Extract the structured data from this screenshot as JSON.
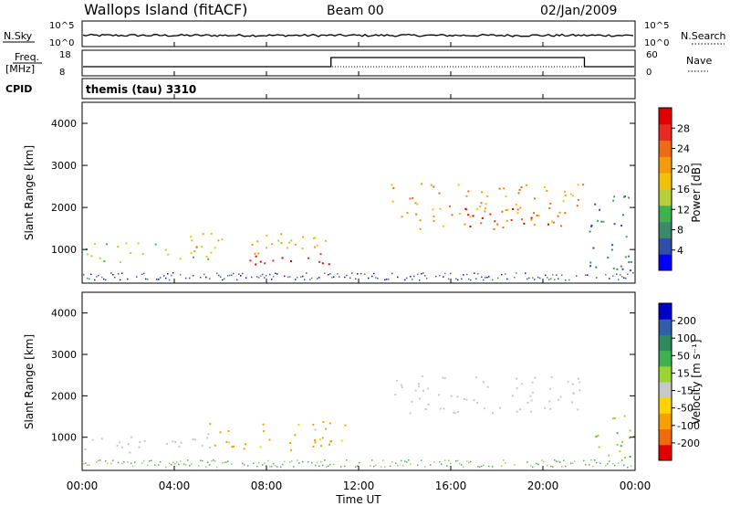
{
  "header": {
    "title": "Wallops Island (fitACF)",
    "beam": "Beam 00",
    "date": "02/Jan/2009"
  },
  "strips": {
    "nsky": {
      "left_label": "N.Sky",
      "right_label": "N.Search",
      "left_ticks": [
        "10^5",
        "10^0"
      ],
      "right_ticks": [
        "10^5",
        "10^0"
      ]
    },
    "freq": {
      "left_label_top": "Freq.",
      "left_label_bottom": "[MHz]",
      "right_label": "Nave",
      "left_ticks": [
        "18",
        "8"
      ],
      "right_ticks": [
        "60",
        "0"
      ]
    },
    "cpid": {
      "label": "CPID",
      "text": "themis (tau) 3310"
    }
  },
  "colors": {
    "power_scale": [
      "#0000ff",
      "#2f4fa8",
      "#3c8a6a",
      "#3fb24f",
      "#b6cf3b",
      "#f2c20a",
      "#f59a0b",
      "#ef6a15",
      "#e82b22",
      "#e00000"
    ],
    "velocity_scale": [
      "#e00000",
      "#f06a0a",
      "#f5a000",
      "#ffd200",
      "#c8c8c8",
      "#9ad430",
      "#3fb24f",
      "#2f8a5a",
      "#2f5fa8",
      "#0000c8"
    ],
    "ground_scatter": "#c8c8c8"
  },
  "chart_data": [
    {
      "type": "heatmap",
      "name": "power",
      "xlabel": "",
      "ylabel": "Slant Range [km]",
      "x_ticks": [
        "00:00",
        "04:00",
        "08:00",
        "12:00",
        "16:00",
        "20:00",
        "00:00"
      ],
      "y_ticks": [
        "1000",
        "2000",
        "3000",
        "4000"
      ],
      "ylim": [
        200,
        4500
      ],
      "colorbar_label": "Power [dB]",
      "colorbar_ticks": [
        "4",
        "8",
        "12",
        "16",
        "20",
        "24",
        "28"
      ],
      "regions": [
        {
          "t0": 0.0,
          "t1": 6.0,
          "r0": 700,
          "r1": 1200,
          "level": 4
        },
        {
          "t0": 4.5,
          "t1": 11.5,
          "r0": 900,
          "r1": 1400,
          "level": 5
        },
        {
          "t0": 7.2,
          "t1": 11.0,
          "r0": 650,
          "r1": 1050,
          "level": 9
        },
        {
          "t0": 13.3,
          "t1": 21.8,
          "r0": 1500,
          "r1": 2600,
          "level": 6
        },
        {
          "t0": 16.5,
          "t1": 20.5,
          "r0": 1500,
          "r1": 2000,
          "level": 8
        },
        {
          "t0": 22.0,
          "t1": 24.0,
          "r0": 500,
          "r1": 2500,
          "level": 2
        }
      ]
    },
    {
      "type": "heatmap",
      "name": "velocity",
      "xlabel": "Time UT",
      "ylabel": "Slant Range [km]",
      "x_ticks": [
        "00:00",
        "04:00",
        "08:00",
        "12:00",
        "16:00",
        "20:00",
        "00:00"
      ],
      "y_ticks": [
        "1000",
        "2000",
        "3000",
        "4000"
      ],
      "ylim": [
        200,
        4500
      ],
      "colorbar_label": "Velocity [m s⁻¹]",
      "colorbar_ticks": [
        "-200",
        "-100",
        "-50",
        "-15",
        "15",
        "50",
        "100",
        "200"
      ],
      "regions": [
        {
          "t0": 0.0,
          "t1": 6.0,
          "r0": 650,
          "r1": 1100,
          "kind": "ground"
        },
        {
          "t0": 5.5,
          "t1": 11.5,
          "r0": 700,
          "r1": 1400,
          "kind": "negative"
        },
        {
          "t0": 13.3,
          "t1": 21.8,
          "r0": 1600,
          "r1": 2500,
          "kind": "ground"
        },
        {
          "t0": 22.2,
          "t1": 24.0,
          "r0": 500,
          "r1": 1600,
          "kind": "positive"
        }
      ]
    }
  ]
}
